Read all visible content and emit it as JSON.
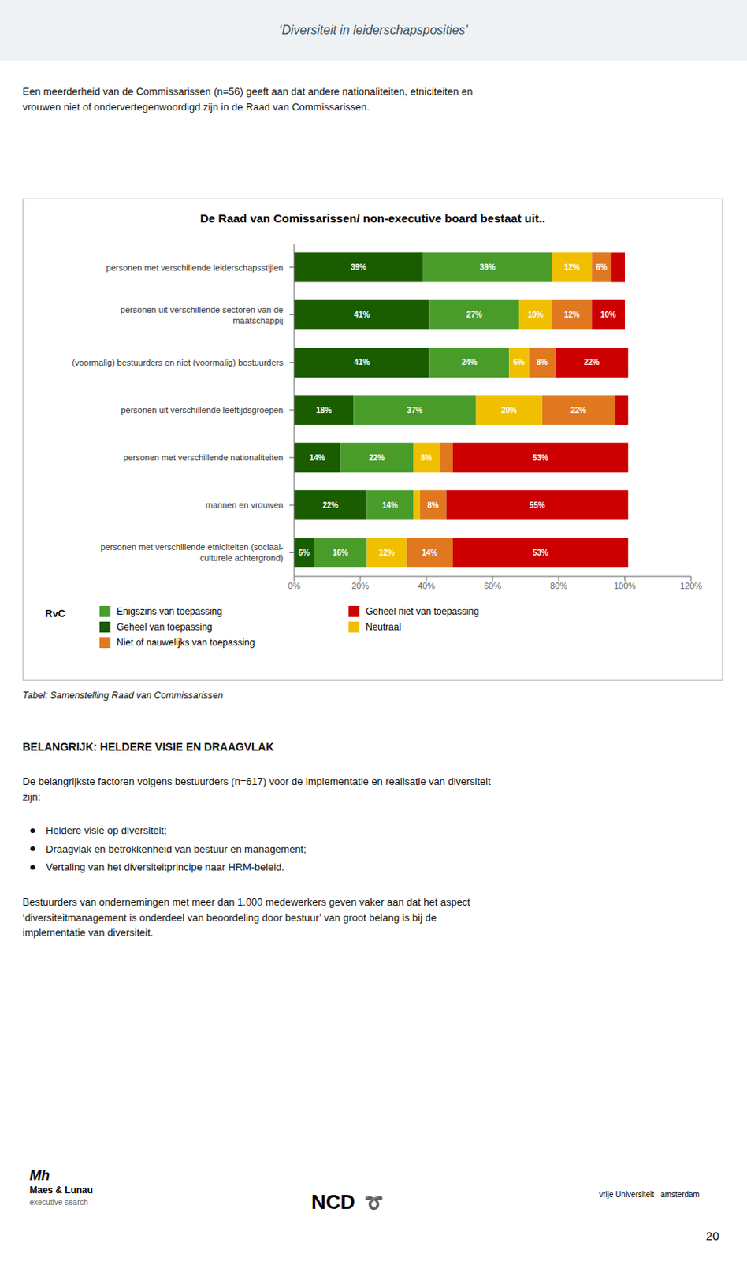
{
  "chart_data": {
    "type": "bar",
    "orientation": "horizontal",
    "stacked": true,
    "title": "De Raad van Comissarissen/ non-executive board bestaat uit..",
    "categories": [
      "personen met verschillende leiderschapsstijlen",
      "personen uit verschillende sectoren van de\nmaatschappij",
      "(voormalig) bestuurders en niet (voormalig) bestuurders",
      "personen uit verschillende leeftijdsgroepen",
      "personen met verschillende nationaliteiten",
      "mannen en vrouwen",
      "personen met verschillende etniciteiten (sociaal-\nculturele achtergrond)"
    ],
    "series": [
      {
        "name": "Geheel van toepassing",
        "color": "#1a5c00",
        "values": [
          39,
          41,
          41,
          18,
          14,
          22,
          6
        ],
        "value_labels": [
          "39%",
          "41%",
          "41%",
          "18%",
          "14%",
          "22%",
          "6%"
        ]
      },
      {
        "name": "Enigszins van toepassing",
        "color": "#4a9c2a",
        "values": [
          39,
          27,
          24,
          37,
          22,
          14,
          16
        ],
        "value_labels": [
          "39%",
          "27%",
          "24%",
          "37%",
          "22%",
          "14%",
          "16%"
        ]
      },
      {
        "name": "Neutraal",
        "color": "#f0c000",
        "values": [
          12,
          10,
          6,
          20,
          8,
          2,
          12
        ],
        "value_labels": [
          "12%",
          "10%",
          "6%",
          "20%",
          "8%",
          null,
          "12%"
        ]
      },
      {
        "name": "Niet of nauwelijks van toepassing",
        "color": "#e07820",
        "values": [
          6,
          12,
          8,
          22,
          4,
          8,
          14
        ],
        "value_labels": [
          "6%",
          "12%",
          "8%",
          "22%",
          null,
          "8%",
          "14%"
        ]
      },
      {
        "name": "Geheel niet van toepassing",
        "color": "#cc0000",
        "values": [
          4,
          10,
          22,
          4,
          53,
          55,
          53
        ],
        "value_labels": [
          null,
          "10%",
          "22%",
          null,
          "53%",
          "55%",
          "53%"
        ]
      }
    ],
    "xlim": [
      0,
      120
    ],
    "xticks": [
      {
        "value": 0,
        "label": "0%"
      },
      {
        "value": 20,
        "label": "20%"
      },
      {
        "value": 40,
        "label": "40%"
      },
      {
        "value": 60,
        "label": "60%"
      },
      {
        "value": 80,
        "label": "80%"
      },
      {
        "value": 100,
        "label": "100%"
      },
      {
        "value": 120,
        "label": "120%"
      }
    ],
    "grid": false,
    "legend": "bottom",
    "data_labels": true,
    "annotations": [
      "‘Diversiteit in leiderschapsposities’",
      "Een meerderheid van de Commissarissen (n=56) geeft aan dat andere nationaliteiten, etniciteiten en\nvrouwen niet of ondervertegenwoordigd zijn in de Raad van Commissarissen.",
      "RvC",
      "Tabel: Samenstelling Raad van Commissarissen",
      "BELANGRIJK: HELDERE VISIE EN DRAAGVLAK",
      "De belangrijkste factoren volgens bestuurders (n=617) voor de implementatie en realisatie van diversiteit\nzijn:",
      "Heldere visie op diversiteit;",
      "Draagvlak en betrokkenheid van bestuur en management;",
      "Vertaling van het diversiteitprincipe naar HRM-beleid.",
      "Bestuurders van ondernemingen met meer dan 1.000 medewerkers geven vaker aan dat het aspect\n‘diversiteitmanagement is onderdeel van beoordeling door bestuur’ van groot belang is bij de\nimplementatie van diversiteit.",
      "Mh",
      "Maes & Lunau",
      "executive search",
      "NCD",
      "➰",
      "vrije Universiteit   amsterdam",
      "20"
    ]
  }
}
